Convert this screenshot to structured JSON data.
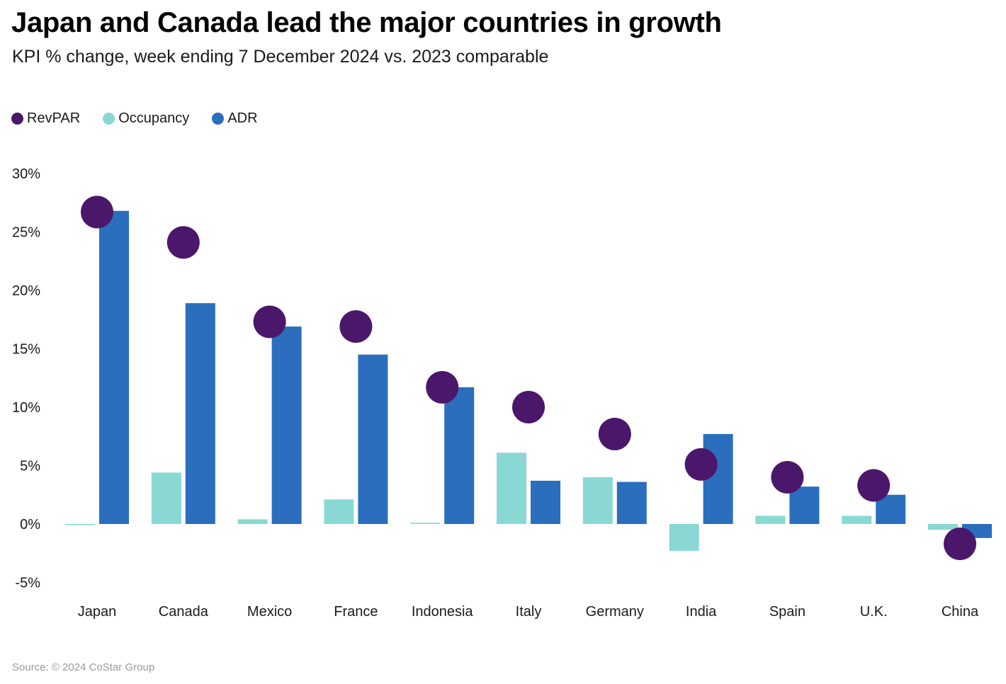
{
  "chart_data": {
    "type": "bar",
    "title": "Japan and Canada lead the major countries in growth",
    "subtitle": "KPI % change, week ending 7 December 2024 vs. 2023 comparable",
    "categories": [
      "Japan",
      "Canada",
      "Mexico",
      "France",
      "Indonesia",
      "Italy",
      "Germany",
      "India",
      "Spain",
      "U.K.",
      "China"
    ],
    "series": [
      {
        "name": "RevPAR",
        "marker": "dot",
        "color": "#4b176b",
        "values": [
          26.7,
          24.1,
          17.3,
          16.9,
          11.7,
          10.0,
          7.7,
          5.1,
          4.0,
          3.3,
          -1.7
        ]
      },
      {
        "name": "Occupancy",
        "marker": "bar",
        "color": "#89d8d3",
        "values": [
          -0.1,
          4.4,
          0.4,
          2.1,
          0.1,
          6.1,
          4.0,
          -2.3,
          0.7,
          0.7,
          -0.5
        ]
      },
      {
        "name": "ADR",
        "marker": "bar",
        "color": "#2a6ebd",
        "values": [
          26.8,
          18.9,
          16.9,
          14.5,
          11.7,
          3.7,
          3.6,
          7.7,
          3.2,
          2.5,
          -1.2
        ]
      }
    ],
    "y_ticks": [
      30,
      25,
      20,
      15,
      10,
      5,
      0,
      -5
    ],
    "y_tick_labels": [
      "30%",
      "25%",
      "20%",
      "15%",
      "10%",
      "5%",
      "0%",
      "-5%"
    ],
    "ylim": [
      -5,
      30
    ],
    "xlabel": "",
    "ylabel": "",
    "legend_position": "top-left",
    "grid": false
  },
  "source": "Source: © 2024 CoStar Group"
}
